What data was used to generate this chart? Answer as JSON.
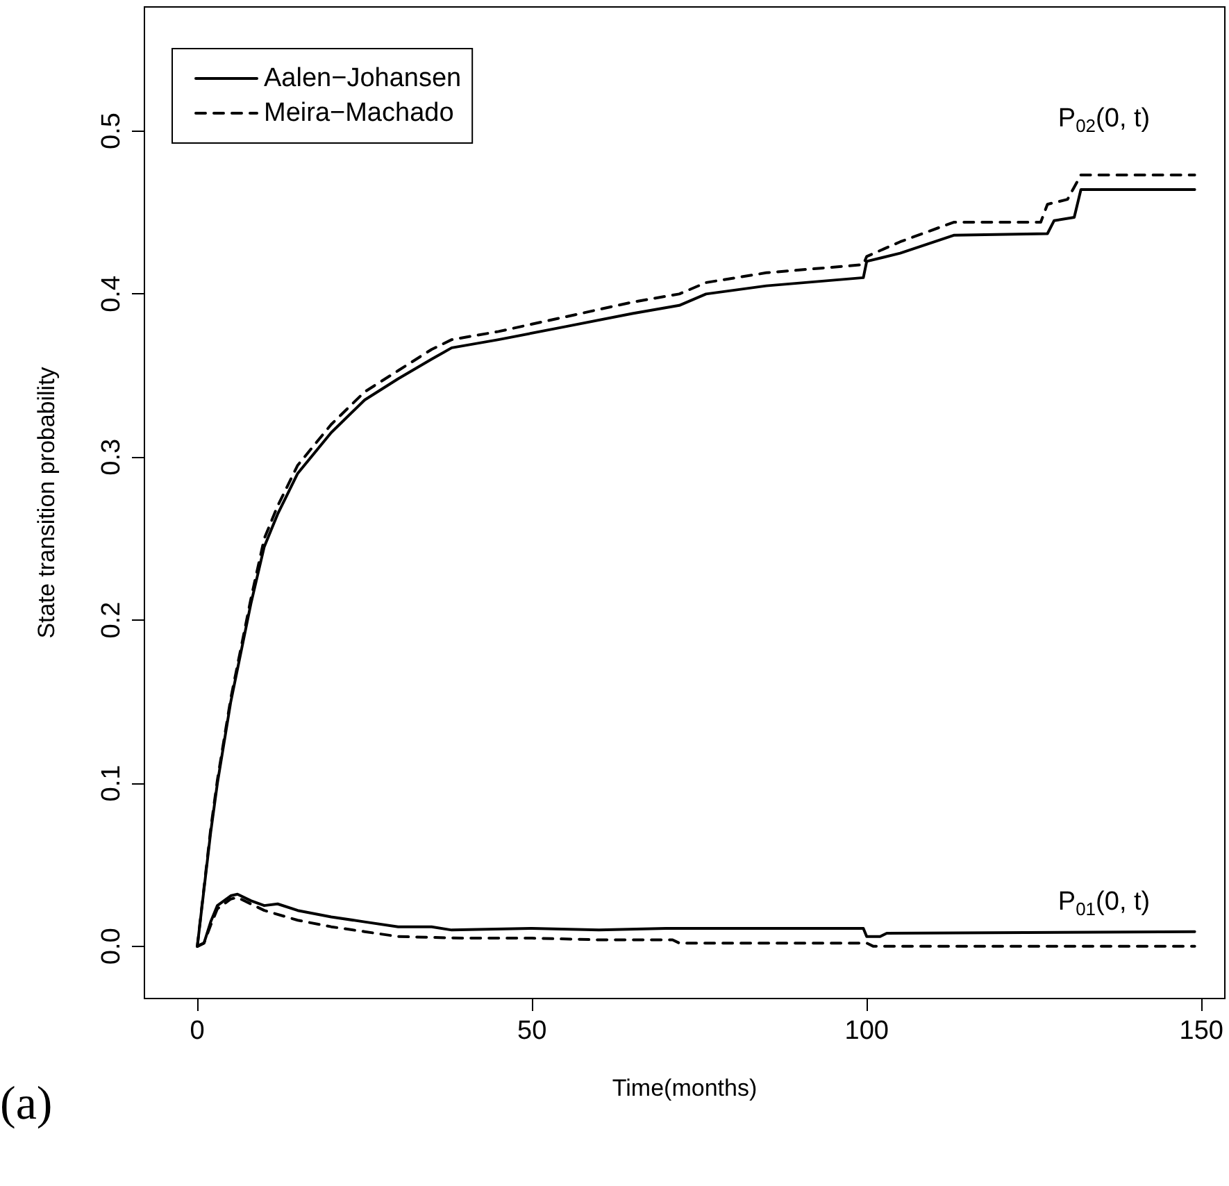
{
  "chart_data": {
    "type": "line",
    "xlabel": "Time(months)",
    "ylabel": "State transition probability",
    "xlim": [
      -7.9,
      153.5
    ],
    "ylim": [
      -0.032,
      0.576
    ],
    "xticks": [
      0,
      50,
      100,
      150
    ],
    "yticks": [
      {
        "value": 0,
        "label": "0.0"
      },
      0.1,
      0.2,
      0.3,
      0.4,
      0.5
    ],
    "legend": "top left",
    "grid": false,
    "series": [
      {
        "name": "Aalen−Johansen",
        "color": "#000000",
        "line_style": "solid",
        "x": [
          0,
          1,
          2,
          3,
          5,
          8,
          10,
          12,
          15,
          20,
          25,
          30,
          35,
          38,
          45,
          55,
          65,
          72,
          76,
          85,
          99.5,
          100,
          105,
          113,
          127,
          128,
          131,
          132,
          149
        ],
        "values": [
          0,
          0.035,
          0.07,
          0.1,
          0.15,
          0.21,
          0.245,
          0.265,
          0.29,
          0.315,
          0.335,
          0.348,
          0.36,
          0.367,
          0.372,
          0.38,
          0.388,
          0.393,
          0.4,
          0.405,
          0.41,
          0.42,
          0.425,
          0.436,
          0.437,
          0.445,
          0.447,
          0.464,
          0.464
        ]
      },
      {
        "name": "Meira−Machado",
        "color": "#000000",
        "line_style": "dashed",
        "x": [
          0,
          1,
          2,
          3,
          5,
          8,
          10,
          12,
          15,
          20,
          25,
          30,
          35,
          38,
          45,
          55,
          65,
          72,
          76,
          85,
          99.5,
          100,
          105,
          113,
          126,
          127,
          130,
          132,
          149
        ],
        "values": [
          0,
          0.036,
          0.072,
          0.102,
          0.152,
          0.213,
          0.25,
          0.27,
          0.295,
          0.32,
          0.34,
          0.353,
          0.366,
          0.372,
          0.377,
          0.386,
          0.395,
          0.4,
          0.407,
          0.413,
          0.418,
          0.423,
          0.432,
          0.444,
          0.444,
          0.455,
          0.458,
          0.473,
          0.473
        ]
      },
      {
        "color": "#000000",
        "line_style": "solid",
        "x": [
          0,
          1,
          2,
          3,
          5,
          6,
          8,
          10,
          12,
          15,
          20,
          25,
          30,
          35,
          38,
          50,
          60,
          70,
          80,
          99.5,
          100,
          102,
          103,
          149
        ],
        "values": [
          0,
          0.002,
          0.015,
          0.025,
          0.031,
          0.032,
          0.028,
          0.025,
          0.026,
          0.022,
          0.018,
          0.015,
          0.012,
          0.012,
          0.01,
          0.011,
          0.01,
          0.011,
          0.011,
          0.011,
          0.006,
          0.006,
          0.008,
          0.009
        ]
      },
      {
        "color": "#000000",
        "line_style": "dashed",
        "x": [
          0,
          1,
          2,
          3,
          5,
          6,
          8,
          10,
          15,
          20,
          25,
          30,
          40,
          50,
          60,
          71,
          72,
          100,
          101,
          149
        ],
        "values": [
          0,
          0.002,
          0.013,
          0.023,
          0.029,
          0.03,
          0.026,
          0.022,
          0.016,
          0.012,
          0.009,
          0.006,
          0.005,
          0.005,
          0.004,
          0.004,
          0.002,
          0.002,
          0,
          0
        ]
      }
    ],
    "annotations": [
      "P$_{02}$(0, t)",
      "P$_{01}$(0, t)",
      "(a)"
    ]
  }
}
